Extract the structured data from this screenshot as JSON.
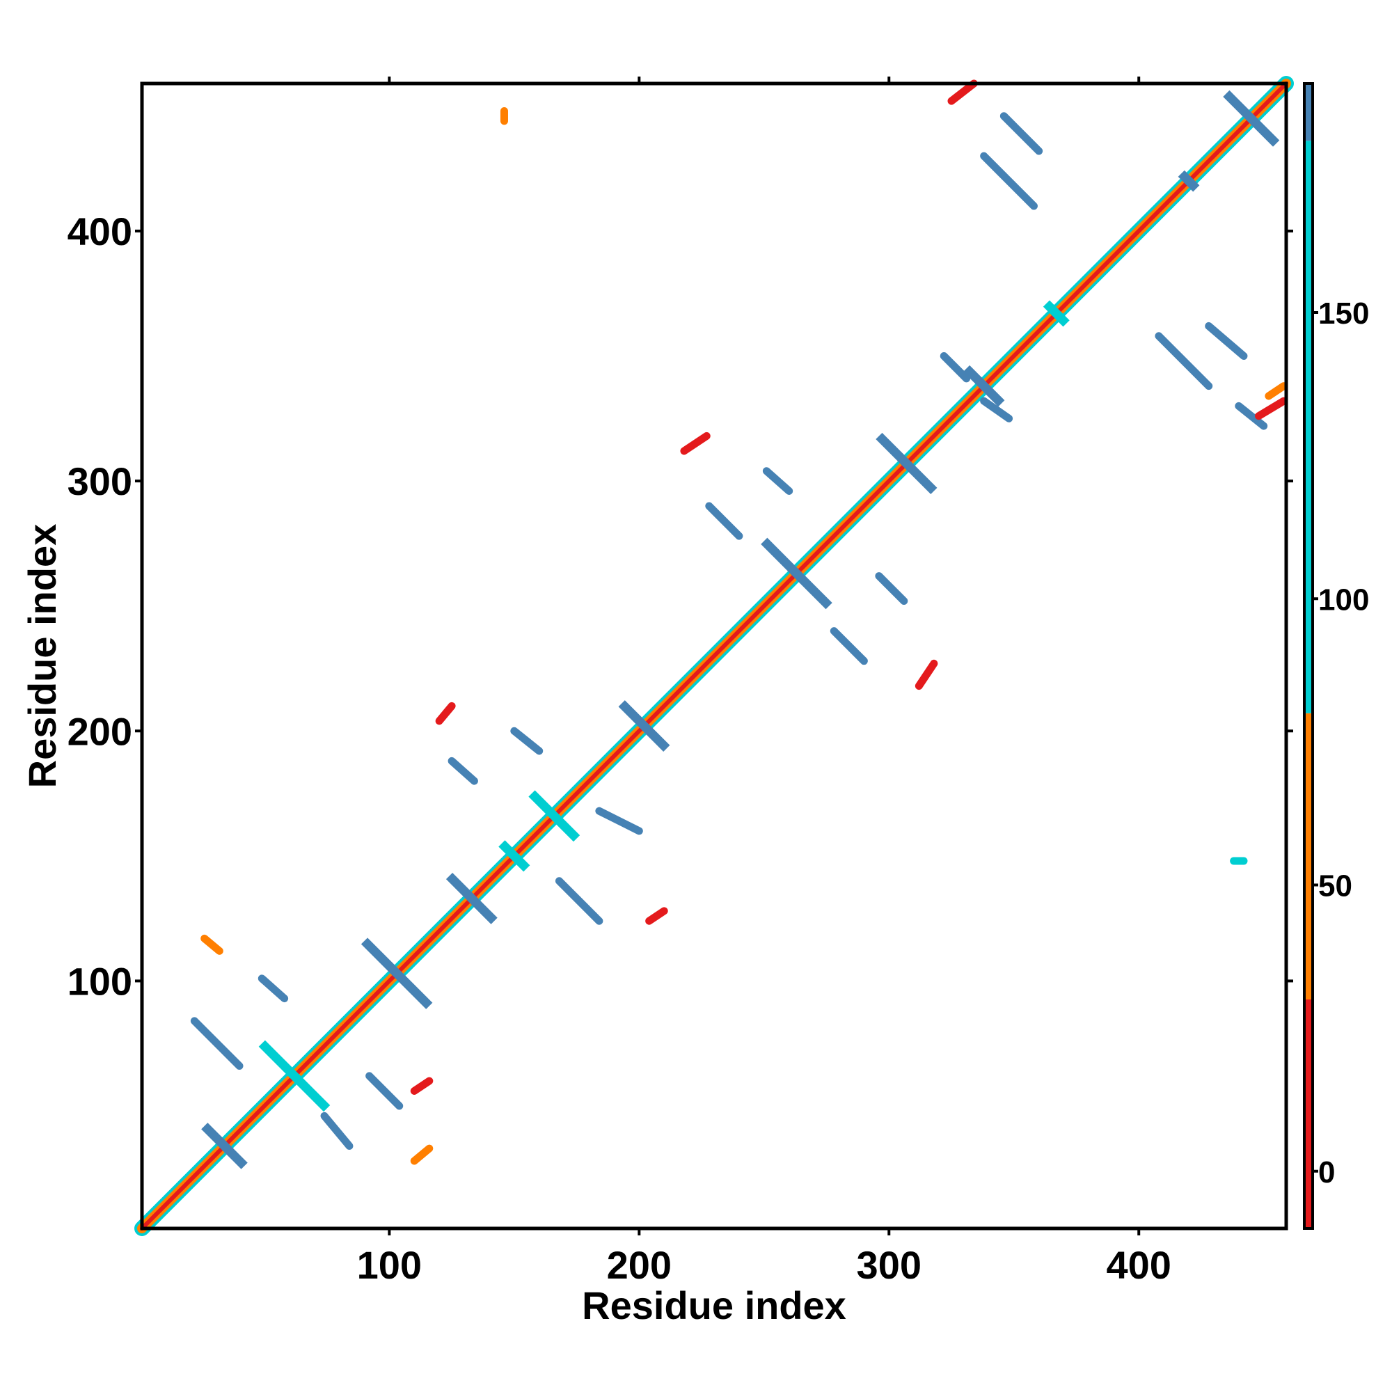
{
  "chart_data": {
    "type": "heatmap",
    "title": "",
    "xlabel": "Residue index",
    "ylabel": "Residue index",
    "xlim": [
      1,
      459
    ],
    "ylim": [
      1,
      459
    ],
    "x_ticks": [
      100,
      200,
      300,
      400
    ],
    "y_ticks": [
      100,
      200,
      300,
      400
    ],
    "x_tick_labels": [
      "100",
      "200",
      "300",
      "400"
    ],
    "y_tick_labels": [
      "100",
      "200",
      "300",
      "400"
    ],
    "colorbar": {
      "range": [
        -10,
        190
      ],
      "ticks": [
        0,
        50,
        100,
        150
      ],
      "tick_labels": [
        "0",
        "50",
        "100",
        "150"
      ],
      "bins": [
        {
          "from": -10,
          "to": 30,
          "color": "#e41a1c"
        },
        {
          "from": 30,
          "to": 80,
          "color": "#ff7f00"
        },
        {
          "from": 80,
          "to": 180,
          "color": "#00ced1"
        },
        {
          "from": 180,
          "to": 190,
          "color": "#4682b4"
        }
      ]
    },
    "colors": {
      "low": "#e41a1c",
      "mid_low": "#ff7f00",
      "mid_high": "#00ced1",
      "high": "#4682b4"
    },
    "features": [
      {
        "kind": "diagonal",
        "from": 1,
        "to": 459
      },
      {
        "kind": "antiparallel",
        "cx": 34,
        "cy": 34,
        "len": 16,
        "color": "#4682b4"
      },
      {
        "kind": "antiparallel",
        "cx": 62,
        "cy": 62,
        "len": 26,
        "color": "#00ced1"
      },
      {
        "kind": "antiparallel",
        "cx": 103,
        "cy": 103,
        "len": 26,
        "color": "#4682b4"
      },
      {
        "kind": "antiparallel",
        "cx": 133,
        "cy": 133,
        "len": 18,
        "color": "#4682b4"
      },
      {
        "kind": "antiparallel",
        "cx": 150,
        "cy": 150,
        "len": 10,
        "color": "#00ced1"
      },
      {
        "kind": "antiparallel",
        "cx": 166,
        "cy": 166,
        "len": 18,
        "color": "#00ced1"
      },
      {
        "kind": "antiparallel",
        "cx": 202,
        "cy": 202,
        "len": 18,
        "color": "#4682b4"
      },
      {
        "kind": "antiparallel",
        "cx": 263,
        "cy": 263,
        "len": 26,
        "color": "#4682b4"
      },
      {
        "kind": "antiparallel",
        "cx": 307,
        "cy": 307,
        "len": 22,
        "color": "#4682b4"
      },
      {
        "kind": "antiparallel",
        "cx": 338,
        "cy": 338,
        "len": 14,
        "color": "#4682b4"
      },
      {
        "kind": "antiparallel",
        "cx": 367,
        "cy": 367,
        "len": 8,
        "color": "#00ced1"
      },
      {
        "kind": "antiparallel",
        "cx": 420,
        "cy": 420,
        "len": 6,
        "color": "#4682b4"
      },
      {
        "kind": "antiparallel",
        "cx": 445,
        "cy": 445,
        "len": 20,
        "color": "#4682b4"
      },
      {
        "kind": "offdiag",
        "x1": 22,
        "y1": 84,
        "x2": 40,
        "y2": 66,
        "color": "#4682b4"
      },
      {
        "kind": "offdiag",
        "x1": 49,
        "y1": 101,
        "x2": 58,
        "y2": 93,
        "color": "#4682b4"
      },
      {
        "kind": "offdiag",
        "x1": 74,
        "y1": 46,
        "x2": 84,
        "y2": 34,
        "color": "#4682b4"
      },
      {
        "kind": "offdiag",
        "x1": 92,
        "y1": 62,
        "x2": 104,
        "y2": 50,
        "color": "#4682b4"
      },
      {
        "kind": "offdiag",
        "x1": 125,
        "y1": 188,
        "x2": 134,
        "y2": 180,
        "color": "#4682b4"
      },
      {
        "kind": "offdiag",
        "x1": 150,
        "y1": 200,
        "x2": 160,
        "y2": 192,
        "color": "#4682b4"
      },
      {
        "kind": "offdiag",
        "x1": 168,
        "y1": 140,
        "x2": 184,
        "y2": 124,
        "color": "#4682b4"
      },
      {
        "kind": "offdiag",
        "x1": 184,
        "y1": 168,
        "x2": 200,
        "y2": 160,
        "color": "#4682b4"
      },
      {
        "kind": "offdiag",
        "x1": 228,
        "y1": 290,
        "x2": 240,
        "y2": 278,
        "color": "#4682b4"
      },
      {
        "kind": "offdiag",
        "x1": 251,
        "y1": 304,
        "x2": 260,
        "y2": 296,
        "color": "#4682b4"
      },
      {
        "kind": "offdiag",
        "x1": 278,
        "y1": 240,
        "x2": 290,
        "y2": 228,
        "color": "#4682b4"
      },
      {
        "kind": "offdiag",
        "x1": 296,
        "y1": 262,
        "x2": 306,
        "y2": 252,
        "color": "#4682b4"
      },
      {
        "kind": "offdiag",
        "x1": 322,
        "y1": 350,
        "x2": 331,
        "y2": 341,
        "color": "#4682b4"
      },
      {
        "kind": "offdiag",
        "x1": 338,
        "y1": 332,
        "x2": 348,
        "y2": 325,
        "color": "#4682b4"
      },
      {
        "kind": "offdiag",
        "x1": 338,
        "y1": 430,
        "x2": 358,
        "y2": 410,
        "color": "#4682b4"
      },
      {
        "kind": "offdiag",
        "x1": 346,
        "y1": 446,
        "x2": 360,
        "y2": 432,
        "color": "#4682b4"
      },
      {
        "kind": "offdiag",
        "x1": 408,
        "y1": 358,
        "x2": 428,
        "y2": 338,
        "color": "#4682b4"
      },
      {
        "kind": "offdiag",
        "x1": 428,
        "y1": 362,
        "x2": 442,
        "y2": 350,
        "color": "#4682b4"
      },
      {
        "kind": "offdiag",
        "x1": 440,
        "y1": 330,
        "x2": 450,
        "y2": 322,
        "color": "#4682b4"
      },
      {
        "kind": "offdiag",
        "x1": 26,
        "y1": 117,
        "x2": 32,
        "y2": 112,
        "color": "#ff7f00"
      },
      {
        "kind": "offdiag",
        "x1": 110,
        "y1": 28,
        "x2": 116,
        "y2": 33,
        "color": "#ff7f00"
      },
      {
        "kind": "offdiag",
        "x1": 116,
        "y1": 60,
        "x2": 110,
        "y2": 56,
        "color": "#e41a1c"
      },
      {
        "kind": "offdiag",
        "x1": 125,
        "y1": 210,
        "x2": 120,
        "y2": 204,
        "color": "#e41a1c"
      },
      {
        "kind": "offdiag",
        "x1": 204,
        "y1": 124,
        "x2": 210,
        "y2": 128,
        "color": "#e41a1c"
      },
      {
        "kind": "offdiag",
        "x1": 218,
        "y1": 312,
        "x2": 227,
        "y2": 318,
        "color": "#e41a1c"
      },
      {
        "kind": "offdiag",
        "x1": 312,
        "y1": 218,
        "x2": 318,
        "y2": 227,
        "color": "#e41a1c"
      },
      {
        "kind": "offdiag",
        "x1": 325,
        "y1": 452,
        "x2": 334,
        "y2": 459,
        "color": "#e41a1c"
      },
      {
        "kind": "offdiag",
        "x1": 448,
        "y1": 326,
        "x2": 458,
        "y2": 332,
        "color": "#e41a1c"
      },
      {
        "kind": "offdiag",
        "x1": 452,
        "y1": 334,
        "x2": 458,
        "y2": 338,
        "color": "#ff7f00"
      },
      {
        "kind": "offdiag",
        "x1": 146,
        "y1": 448,
        "x2": 146,
        "y2": 444,
        "color": "#ff7f00"
      },
      {
        "kind": "offdiag",
        "x1": 438,
        "y1": 148,
        "x2": 442,
        "y2": 148,
        "color": "#00ced1"
      }
    ]
  }
}
